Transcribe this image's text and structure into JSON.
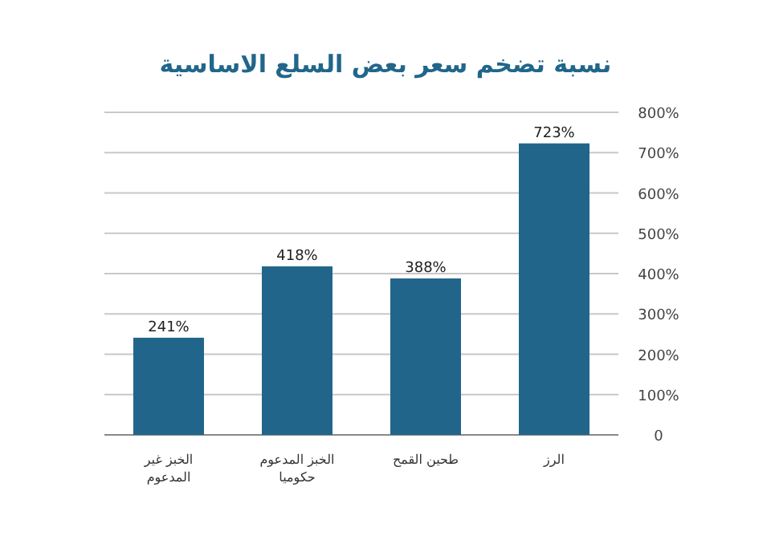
{
  "chart_data": {
    "type": "bar",
    "title": "نسبة تضخم سعر بعض السلع الاساسية",
    "categories": [
      "الخبز غير المدعوم",
      "الخبز المدعوم حكوميا",
      "طحين القمح",
      "الرز"
    ],
    "values": [
      241,
      418,
      388,
      723
    ],
    "color": "#21668a",
    "value_labels": [
      "241%",
      "418%",
      "388%",
      "723%"
    ],
    "ylim": [
      0,
      800
    ],
    "yticks": [
      0,
      {
        "value": 100,
        "label": "100%"
      },
      {
        "value": 200,
        "label": "200%"
      },
      {
        "value": 300,
        "label": "300%"
      },
      {
        "value": 400,
        "label": "400%"
      },
      {
        "value": 500,
        "label": "500%"
      },
      {
        "value": 600,
        "label": "600%"
      },
      {
        "value": 700,
        "label": "700%"
      },
      {
        "value": 800,
        "label": "800%"
      }
    ],
    "grid": "y"
  }
}
